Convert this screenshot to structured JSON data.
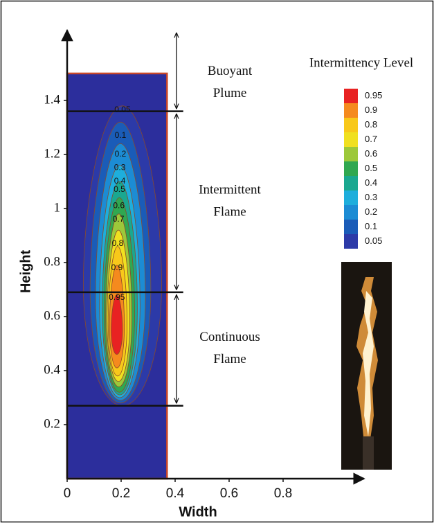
{
  "chart_data": {
    "type": "contour",
    "x_label": "Width",
    "y_label": "Height",
    "xlim": [
      0,
      1.1
    ],
    "ylim": [
      0,
      1.66
    ],
    "xticks": [
      0,
      0.2,
      0.4,
      0.6,
      0.8
    ],
    "yticks": [
      0.2,
      0.4,
      0.6,
      0.8,
      1,
      1.2,
      1.4
    ],
    "domain": {
      "x": [
        0,
        0.37
      ],
      "y": [
        0,
        1.5
      ],
      "color": "#2c2e9c",
      "edge_color": "#c8482a"
    },
    "colorbar_title": "Intermittency Level",
    "colorbar": [
      {
        "level": 0.95,
        "color": "#e82222"
      },
      {
        "level": 0.9,
        "color": "#f58a1e"
      },
      {
        "level": 0.8,
        "color": "#f8c81a"
      },
      {
        "level": 0.7,
        "color": "#f0e020"
      },
      {
        "level": 0.6,
        "color": "#9cc83a"
      },
      {
        "level": 0.5,
        "color": "#30a850"
      },
      {
        "level": 0.4,
        "color": "#1aa890"
      },
      {
        "level": 0.3,
        "color": "#1eaedc"
      },
      {
        "level": 0.2,
        "color": "#1c8cd4"
      },
      {
        "level": 0.1,
        "color": "#1a5cb8"
      },
      {
        "level": 0.05,
        "color": "#2c3aa8"
      }
    ],
    "contours": [
      {
        "level": 0.05,
        "xmin": 0.06,
        "xmax": 0.35,
        "ymin": 0.27,
        "ymax": 1.38,
        "label_y": 1.365
      },
      {
        "level": 0.1,
        "xmin": 0.085,
        "xmax": 0.31,
        "ymin": 0.28,
        "ymax": 1.32,
        "label_y": 1.27
      },
      {
        "level": 0.2,
        "xmin": 0.105,
        "xmax": 0.29,
        "ymin": 0.29,
        "ymax": 1.24,
        "label_y": 1.2
      },
      {
        "level": 0.3,
        "xmin": 0.12,
        "xmax": 0.27,
        "ymin": 0.3,
        "ymax": 1.16,
        "label_y": 1.15
      },
      {
        "level": 0.4,
        "xmin": 0.13,
        "xmax": 0.26,
        "ymin": 0.31,
        "ymax": 1.1,
        "label_y": 1.1
      },
      {
        "level": 0.5,
        "xmin": 0.137,
        "xmax": 0.25,
        "ymin": 0.32,
        "ymax": 1.04,
        "label_y": 1.07
      },
      {
        "level": 0.6,
        "xmin": 0.143,
        "xmax": 0.24,
        "ymin": 0.34,
        "ymax": 0.98,
        "label_y": 1.01
      },
      {
        "level": 0.7,
        "xmin": 0.148,
        "xmax": 0.232,
        "ymin": 0.36,
        "ymax": 0.92,
        "label_y": 0.96
      },
      {
        "level": 0.8,
        "xmin": 0.152,
        "xmax": 0.222,
        "ymin": 0.38,
        "ymax": 0.86,
        "label_y": 0.87
      },
      {
        "level": 0.9,
        "xmin": 0.157,
        "xmax": 0.212,
        "ymin": 0.41,
        "ymax": 0.79,
        "label_y": 0.78
      },
      {
        "level": 0.95,
        "xmin": 0.163,
        "xmax": 0.205,
        "ymin": 0.46,
        "ymax": 0.68,
        "label_y": 0.67
      }
    ],
    "boundaries": [
      1.36,
      0.69,
      0.27
    ],
    "regions": [
      {
        "lines": [
          "Buoyant",
          "Plume"
        ],
        "from": 1.36,
        "to": 1.66
      },
      {
        "lines": [
          "Intermittent",
          "Flame"
        ],
        "from": 0.69,
        "to": 1.36
      },
      {
        "lines": [
          "Continuous",
          "Flame"
        ],
        "from": 0.27,
        "to": 0.69
      }
    ]
  }
}
